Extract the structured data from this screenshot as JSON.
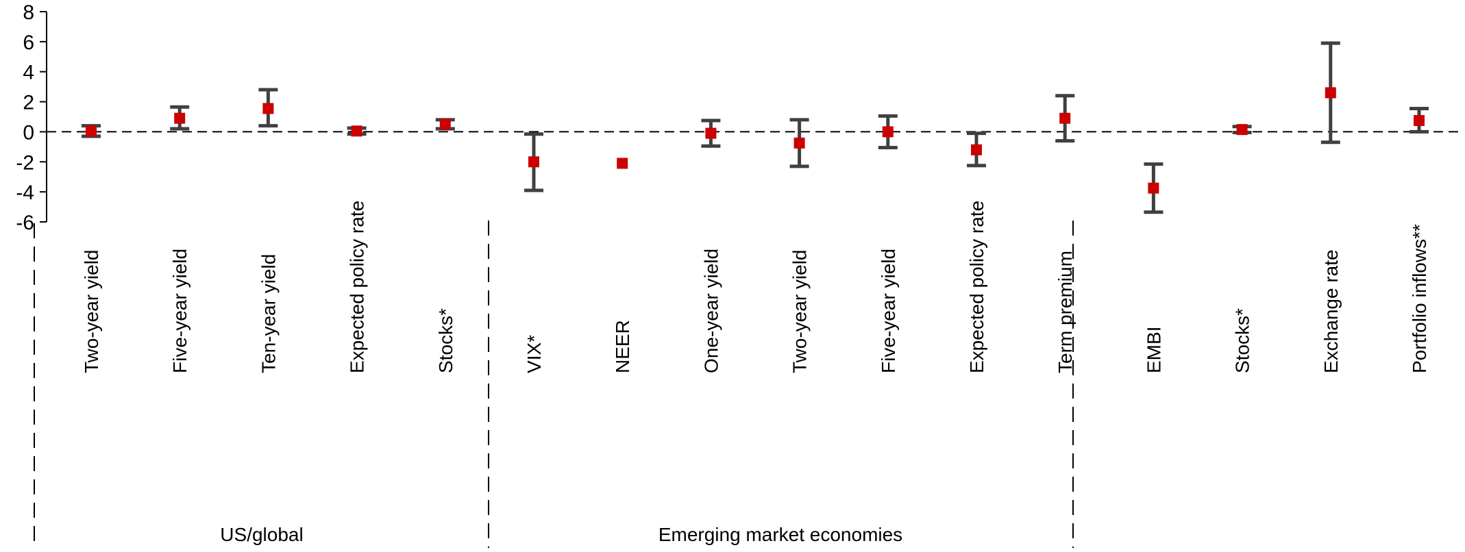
{
  "chart_data": {
    "type": "scatter",
    "title": "",
    "xlabel": "",
    "ylabel": "",
    "ylim": [
      -6,
      8
    ],
    "yticks": [
      8,
      6,
      4,
      2,
      0,
      -2,
      -4,
      -6
    ],
    "grid": false,
    "reference_line": {
      "y": 0,
      "style": "dashed"
    },
    "colors": {
      "marker": "#cc0000",
      "error_bar": "#404040",
      "axis": "#000000"
    },
    "groups": [
      {
        "label": "US/global",
        "categories": [
          "Two-year yield",
          "Five-year yield",
          "Ten-year yield",
          "Expected policy rate",
          "Stocks*",
          "VIX*",
          "NEER"
        ]
      },
      {
        "label": "Emerging market economies",
        "categories": [
          "One-year yield",
          "Two-year yield",
          "Five-year yield",
          "Expected policy rate",
          "Term premium",
          "EMBI",
          "Stocks*",
          "Exchange rate",
          "Portfolio inflows**"
        ]
      }
    ],
    "series": [
      {
        "points": [
          {
            "category": "Two-year yield",
            "group": "US/global",
            "value": 0.05,
            "low": -0.3,
            "high": 0.4
          },
          {
            "category": "Five-year yield",
            "group": "US/global",
            "value": 0.9,
            "low": 0.2,
            "high": 1.65
          },
          {
            "category": "Ten-year yield",
            "group": "US/global",
            "value": 1.55,
            "low": 0.4,
            "high": 2.8
          },
          {
            "category": "Expected policy rate",
            "group": "US/global",
            "value": 0.05,
            "low": -0.15,
            "high": 0.25
          },
          {
            "category": "Stocks*",
            "group": "US/global",
            "value": 0.5,
            "low": 0.2,
            "high": 0.8
          },
          {
            "category": "VIX*",
            "group": "US/global",
            "value": -2.0,
            "low": -3.9,
            "high": -0.15
          },
          {
            "category": "NEER",
            "group": "US/global",
            "value": -2.1,
            "low": null,
            "high": null
          },
          {
            "category": "One-year yield",
            "group": "Emerging market economies",
            "value": -0.1,
            "low": -0.95,
            "high": 0.75
          },
          {
            "category": "Two-year yield",
            "group": "Emerging market economies",
            "value": -0.75,
            "low": -2.3,
            "high": 0.8
          },
          {
            "category": "Five-year yield",
            "group": "Emerging market economies",
            "value": 0.0,
            "low": -1.05,
            "high": 1.05
          },
          {
            "category": "Expected policy rate",
            "group": "Emerging market economies",
            "value": -1.2,
            "low": -2.25,
            "high": -0.1
          },
          {
            "category": "Term premium",
            "group": "Emerging market economies",
            "value": 0.9,
            "low": -0.6,
            "high": 2.4
          },
          {
            "category": "EMBI",
            "group": "Emerging market economies",
            "value": -3.75,
            "low": -5.35,
            "high": -2.15
          },
          {
            "category": "Stocks*",
            "group": "Emerging market economies",
            "value": 0.15,
            "low": -0.05,
            "high": 0.35
          },
          {
            "category": "Exchange rate",
            "group": "Emerging market economies",
            "value": 2.6,
            "low": -0.7,
            "high": 5.9
          },
          {
            "category": "Portfolio inflows**",
            "group": "Emerging market economies",
            "value": 0.75,
            "low": 0.0,
            "high": 1.55
          }
        ]
      }
    ]
  }
}
